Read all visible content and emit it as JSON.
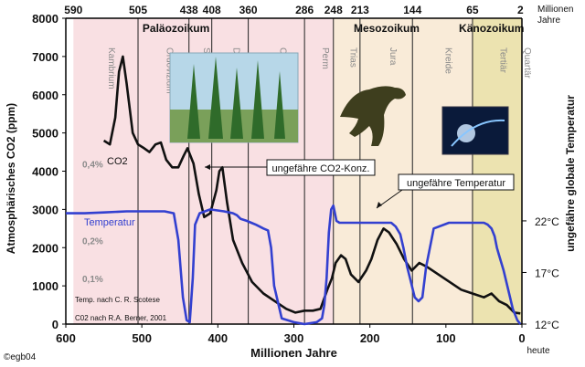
{
  "chart_data": {
    "type": "line",
    "xlabel": "Millionen Jahre",
    "ylabel_left": "Atmosphärisches CO2 (ppm)",
    "ylabel_right": "ungefähre globale Temperatur",
    "xlim": [
      600,
      0
    ],
    "ylim": [
      0,
      8000
    ],
    "grid": false,
    "x_ticks": [
      "600",
      "500",
      "400",
      "300",
      "200",
      "100",
      "0"
    ],
    "x_end_label": "heute",
    "y_ticks": [
      "0",
      "1000",
      "2000",
      "3000",
      "4000",
      "5000",
      "6000",
      "7000",
      "8000"
    ],
    "top_axis_title": "Millionen Jahre",
    "top_ticks": [
      {
        "label": "590",
        "x": 590
      },
      {
        "label": "505",
        "x": 505
      },
      {
        "label": "438",
        "x": 438
      },
      {
        "label": "408",
        "x": 408
      },
      {
        "label": "360",
        "x": 360
      },
      {
        "label": "286",
        "x": 286
      },
      {
        "label": "248",
        "x": 248
      },
      {
        "label": "213",
        "x": 213
      },
      {
        "label": "144",
        "x": 144
      },
      {
        "label": "65",
        "x": 65
      },
      {
        "label": "2",
        "x": 2
      }
    ],
    "eras": [
      {
        "name": "Paläozoikum",
        "from": 590,
        "to": 248,
        "color": "#f9e0e3"
      },
      {
        "name": "Mesozoikum",
        "from": 248,
        "to": 65,
        "color": "#f9ebd8"
      },
      {
        "name": "Känozoikum",
        "from": 65,
        "to": 0,
        "color": "#ece3b0"
      }
    ],
    "periods": [
      {
        "name": "Kambrium",
        "center": 548
      },
      {
        "name": "Ordovizium",
        "center": 472
      },
      {
        "name": "Silur",
        "center": 423
      },
      {
        "name": "Devon",
        "center": 384
      },
      {
        "name": "Carbon",
        "center": 323
      },
      {
        "name": "Perm",
        "center": 267
      },
      {
        "name": "Trias",
        "center": 230
      },
      {
        "name": "Jura",
        "center": 178
      },
      {
        "name": "Kreide",
        "center": 105
      },
      {
        "name": "Tertiär",
        "center": 33
      },
      {
        "name": "Quartär",
        "center": 1
      }
    ],
    "left_pct_labels": [
      {
        "label": "0,4%",
        "y": 4000
      },
      {
        "label": "0,2%",
        "y": 2000
      },
      {
        "label": "0,1%",
        "y": 1000
      }
    ],
    "right_temp_ticks": [
      {
        "label": "22°C",
        "y": 2700
      },
      {
        "label": "17°C",
        "y": 1350
      },
      {
        "label": "12°C",
        "y": 0
      }
    ],
    "series": [
      {
        "name": "CO2",
        "color": "#111111",
        "x": [
          550,
          542,
          535,
          530,
          525,
          520,
          512,
          505,
          497,
          490,
          482,
          475,
          468,
          460,
          452,
          445,
          440,
          432,
          425,
          418,
          410,
          402,
          398,
          394,
          388,
          380,
          368,
          355,
          340,
          325,
          310,
          298,
          286,
          275,
          265,
          256,
          250,
          245,
          238,
          232,
          225,
          215,
          205,
          198,
          190,
          182,
          175,
          165,
          155,
          145,
          135,
          125,
          110,
          95,
          80,
          65,
          50,
          40,
          30,
          20,
          10,
          2
        ],
        "y": [
          4800,
          4700,
          5400,
          6600,
          7000,
          6300,
          5000,
          4700,
          4600,
          4500,
          4700,
          4750,
          4300,
          4100,
          4100,
          4400,
          4600,
          4200,
          3400,
          2800,
          2900,
          3500,
          4000,
          4100,
          3200,
          2200,
          1600,
          1100,
          800,
          600,
          400,
          300,
          350,
          350,
          400,
          900,
          1200,
          1600,
          1800,
          1700,
          1300,
          1100,
          1400,
          1700,
          2200,
          2500,
          2400,
          2100,
          1700,
          1400,
          1600,
          1500,
          1300,
          1100,
          900,
          800,
          700,
          800,
          600,
          500,
          300,
          280
        ]
      },
      {
        "name": "Temperatur",
        "color": "#3340d0",
        "x": [
          600,
          575,
          550,
          520,
          490,
          470,
          458,
          452,
          446,
          441,
          437,
          433,
          430,
          424,
          410,
          392,
          380,
          375,
          370,
          362,
          356,
          350,
          345,
          340,
          334,
          330,
          326,
          316,
          300,
          286,
          270,
          263,
          260,
          257,
          254,
          251,
          248,
          244,
          240,
          225,
          200,
          182,
          172,
          166,
          160,
          156,
          151,
          146,
          141,
          136,
          131,
          126,
          116,
          96,
          80,
          68,
          60,
          55,
          50,
          45,
          40,
          36,
          33,
          30,
          24,
          18,
          12,
          6,
          2
        ],
        "y": [
          2900,
          2900,
          2920,
          2950,
          2950,
          2950,
          2900,
          2200,
          700,
          100,
          50,
          1200,
          2600,
          2900,
          3000,
          2950,
          2900,
          2850,
          2750,
          2700,
          2650,
          2600,
          2550,
          2500,
          2450,
          2000,
          1000,
          150,
          50,
          0,
          50,
          150,
          500,
          1200,
          2400,
          3000,
          3100,
          2700,
          2650,
          2650,
          2650,
          2650,
          2650,
          2550,
          2350,
          2000,
          1500,
          1100,
          700,
          600,
          700,
          1500,
          2500,
          2650,
          2650,
          2650,
          2650,
          2650,
          2650,
          2600,
          2500,
          2300,
          2000,
          1800,
          1400,
          900,
          400,
          100,
          0
        ]
      }
    ],
    "labels": {
      "co2_series": "CO2",
      "temp_series": "Temperatur",
      "co2_callout": "ungefähre CO2-Konz.",
      "temp_callout": "ungefähre Temperatur",
      "credit_line1": "Temp. nach C. R. Scotese",
      "credit_line2": "C02 nach R.A. Berner, 2001",
      "copyright": "©egb04"
    }
  }
}
